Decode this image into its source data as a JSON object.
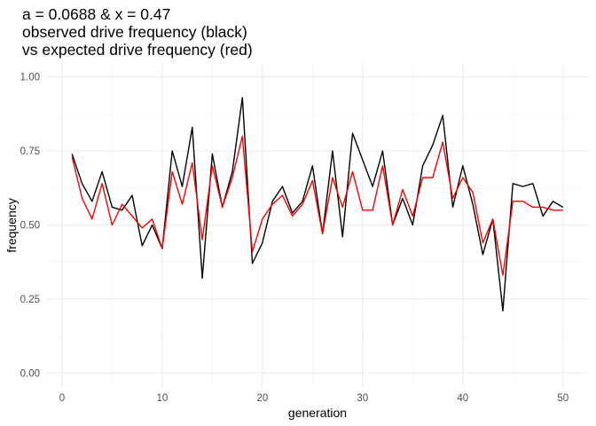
{
  "chart_data": {
    "type": "line",
    "title": [
      "a = 0.0688 & x = 0.47",
      "observed drive frequency (black)",
      "vs expected drive frequency (red)"
    ],
    "xlabel": "generation",
    "ylabel": "frequency",
    "xlim": [
      -1.5,
      52.5
    ],
    "ylim": [
      -0.05,
      1.05
    ],
    "x_ticks": [
      0,
      10,
      20,
      30,
      40,
      50
    ],
    "y_ticks": [
      0.0,
      0.25,
      0.5,
      0.75,
      1.0
    ],
    "x_tick_labels": [
      "0",
      "10",
      "20",
      "30",
      "40",
      "50"
    ],
    "y_tick_labels": [
      "0.00",
      "0.25",
      "0.50",
      "0.75",
      "1.00"
    ],
    "grid": true,
    "x": [
      1,
      2,
      3,
      4,
      5,
      6,
      7,
      8,
      9,
      10,
      11,
      12,
      13,
      14,
      15,
      16,
      17,
      18,
      19,
      20,
      21,
      22,
      23,
      24,
      25,
      26,
      27,
      28,
      29,
      30,
      31,
      32,
      33,
      34,
      35,
      36,
      37,
      38,
      39,
      40,
      41,
      42,
      43,
      44,
      45,
      46,
      47,
      48,
      49,
      50
    ],
    "series": [
      {
        "color": "#000000",
        "values": [
          0.74,
          0.64,
          0.58,
          0.68,
          0.56,
          0.55,
          0.6,
          0.43,
          0.5,
          0.42,
          0.75,
          0.63,
          0.83,
          0.32,
          0.74,
          0.56,
          0.68,
          0.93,
          0.37,
          0.44,
          0.58,
          0.63,
          0.54,
          0.58,
          0.7,
          0.47,
          0.75,
          0.46,
          0.81,
          0.72,
          0.63,
          0.75,
          0.5,
          0.59,
          0.5,
          0.7,
          0.77,
          0.87,
          0.56,
          0.7,
          0.57,
          0.4,
          0.52,
          0.21,
          0.64,
          0.63,
          0.64,
          0.53,
          0.58,
          0.56
        ]
      },
      {
        "color": "#ff0000",
        "values": [
          0.73,
          0.59,
          0.52,
          0.64,
          0.5,
          0.57,
          0.53,
          0.49,
          0.52,
          0.42,
          0.68,
          0.57,
          0.71,
          0.45,
          0.7,
          0.56,
          0.66,
          0.8,
          0.41,
          0.52,
          0.57,
          0.6,
          0.53,
          0.57,
          0.65,
          0.47,
          0.66,
          0.56,
          0.68,
          0.55,
          0.55,
          0.7,
          0.5,
          0.62,
          0.53,
          0.66,
          0.66,
          0.78,
          0.59,
          0.66,
          0.61,
          0.44,
          0.52,
          0.33,
          0.58,
          0.58,
          0.56,
          0.56,
          0.55,
          0.55
        ]
      }
    ]
  }
}
